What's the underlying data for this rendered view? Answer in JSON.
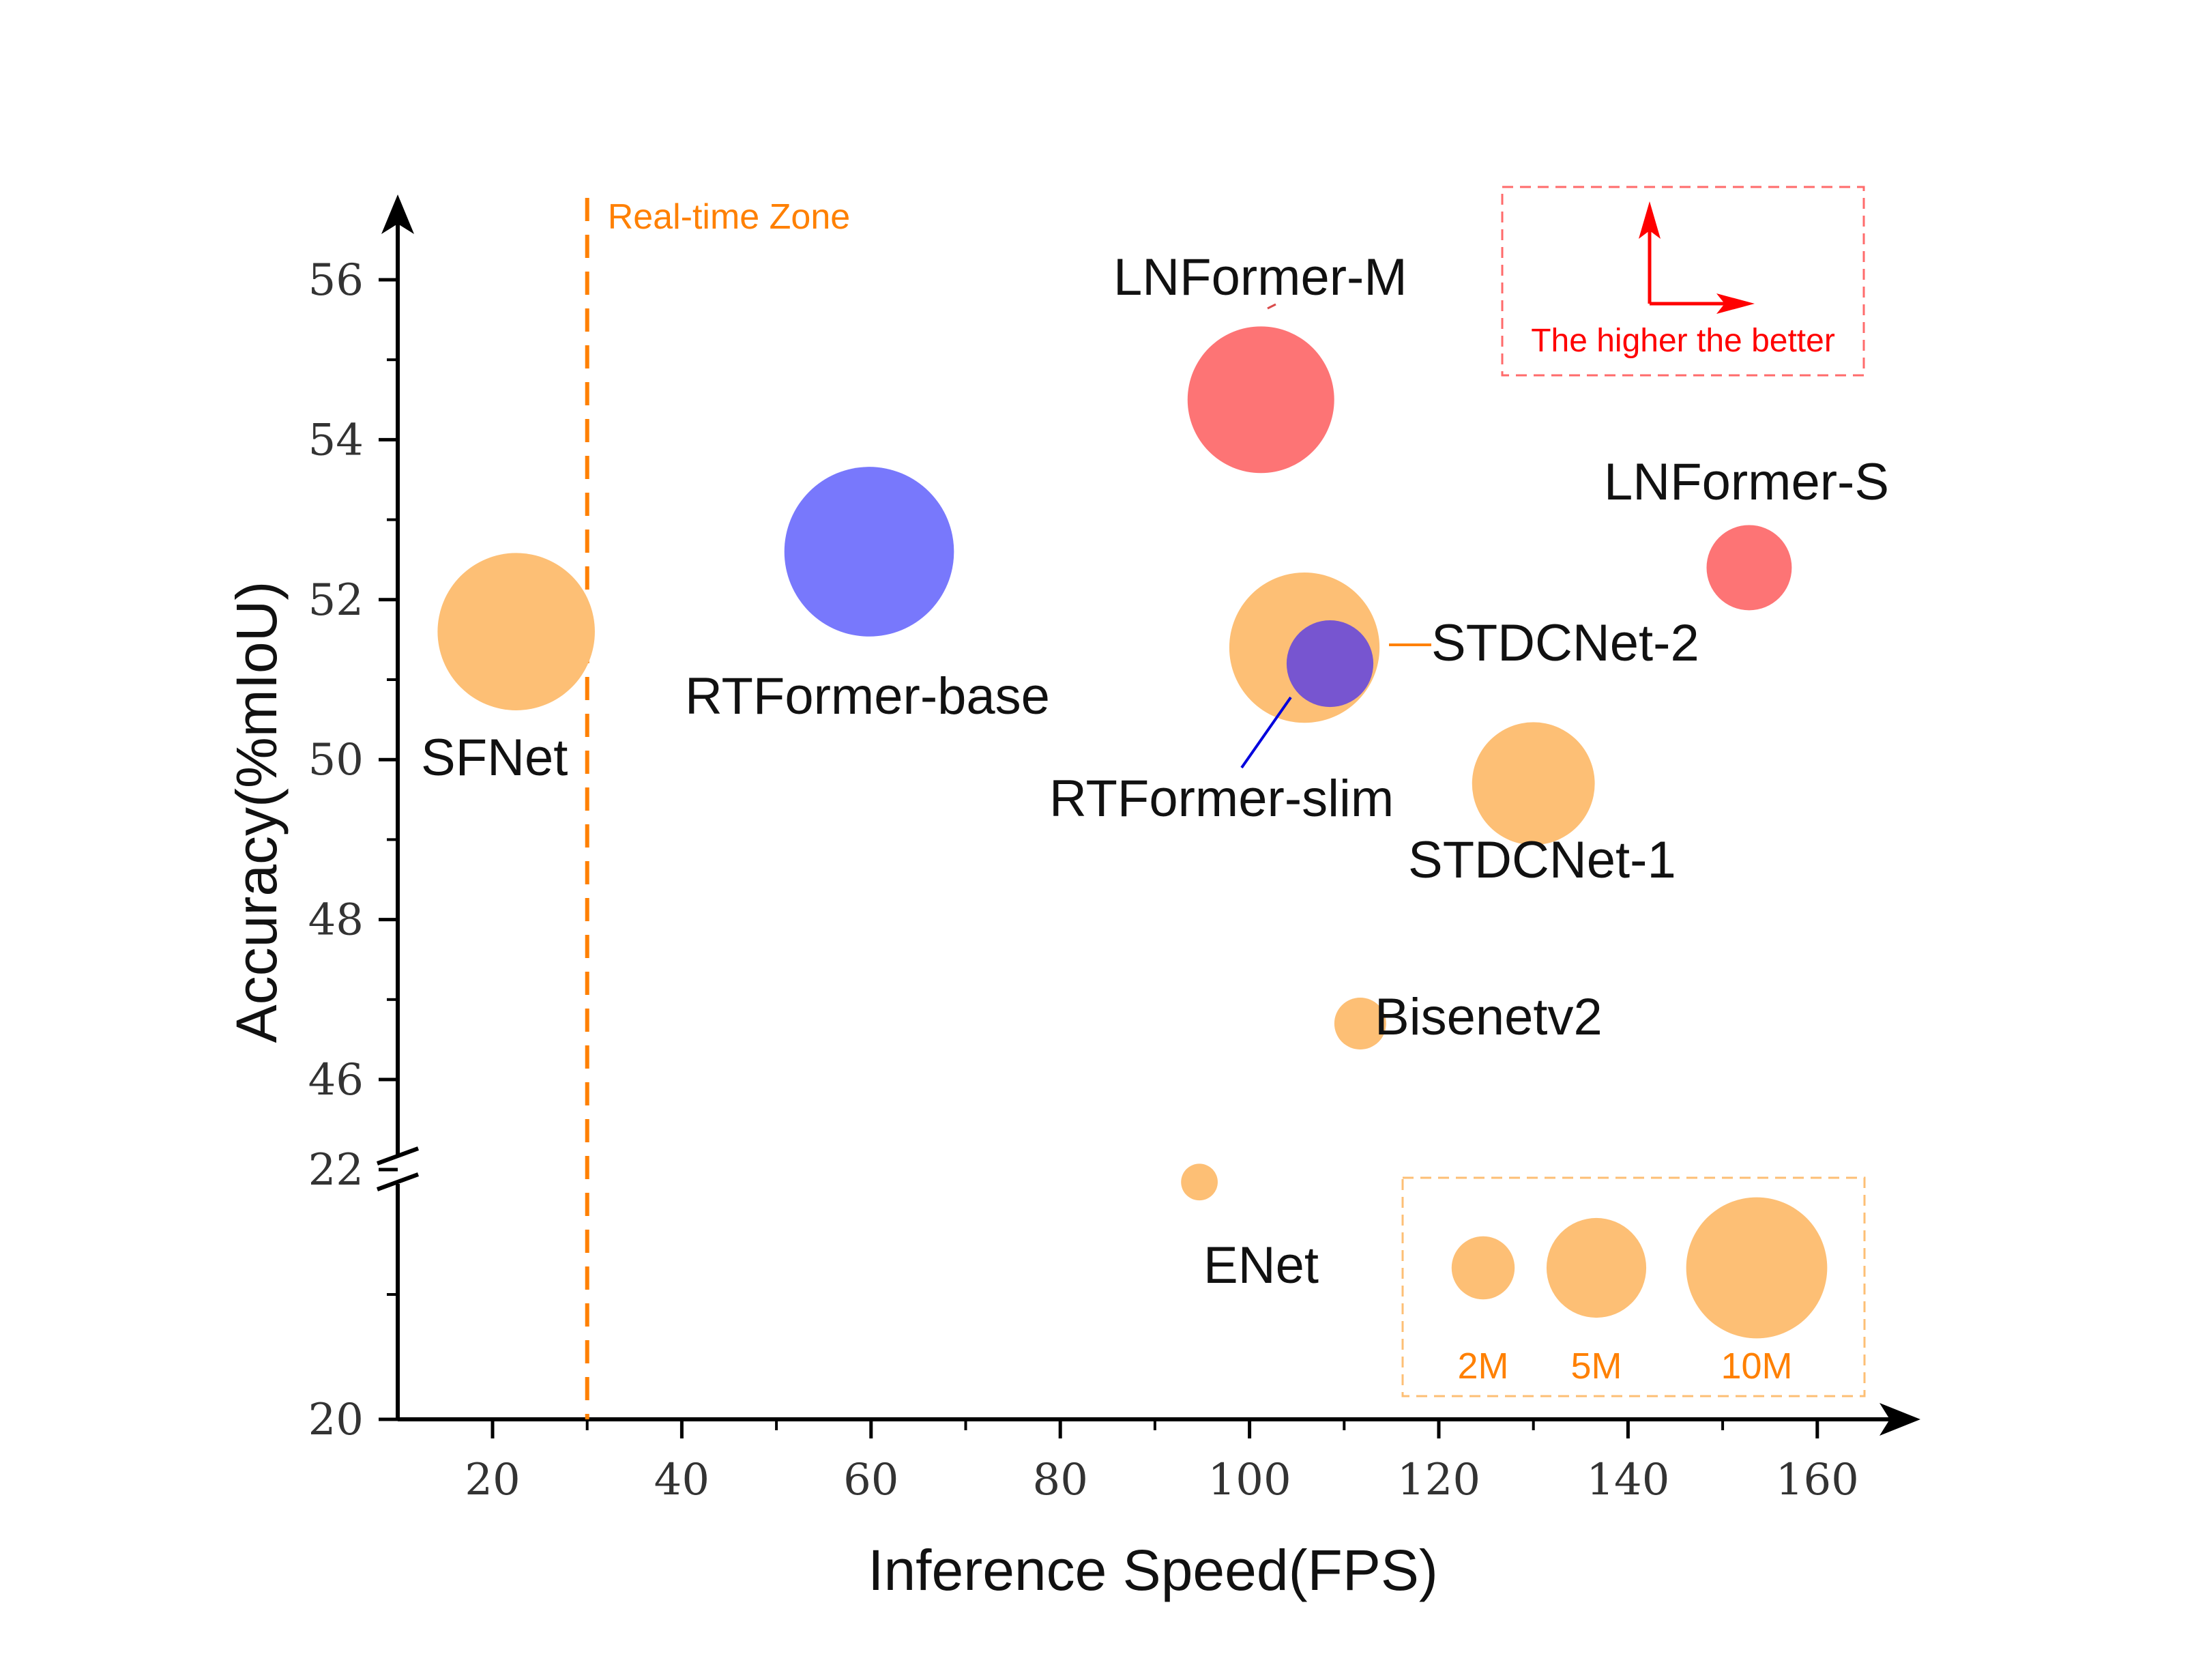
{
  "chart_data": {
    "type": "scatter",
    "xlabel": "Inference Speed(FPS)",
    "ylabel": "Accuracy(%mIoU)",
    "xlim": [
      10,
      160
    ],
    "y_upper_range": [
      45,
      57
    ],
    "y_lower_range": [
      20,
      23
    ],
    "y_axis_break": true,
    "x_ticks": [
      20,
      40,
      60,
      80,
      100,
      120,
      140,
      160
    ],
    "y_ticks_upper": [
      46,
      48,
      50,
      52,
      54,
      56
    ],
    "y_ticks_lower": [
      20,
      22
    ],
    "points": [
      {
        "label": "SFNet",
        "x": 22.5,
        "y": 51.6,
        "params_m": 9.2,
        "color": "#fdbf75"
      },
      {
        "label": "RTFormer-base",
        "x": 59.8,
        "y": 52.6,
        "params_m": 10.7,
        "color": "#7878fc"
      },
      {
        "label": "LNFormer-M",
        "x": 101.2,
        "y": 54.5,
        "params_m": 8.0,
        "color": "#fd7475"
      },
      {
        "label": "LNFormer-S",
        "x": 152.8,
        "y": 52.4,
        "params_m": 2.7,
        "color": "#fd7475"
      },
      {
        "label": "STDCNet-2",
        "x": 105.8,
        "y": 51.4,
        "params_m": 8.4,
        "color": "#fdbf75"
      },
      {
        "label": "RTFormer-slim",
        "x": 108.5,
        "y": 51.2,
        "params_m": 2.8,
        "color": "#7755d0"
      },
      {
        "label": "STDCNet-1",
        "x": 130.0,
        "y": 49.7,
        "params_m": 5.6,
        "color": "#fdbf75"
      },
      {
        "label": "Bisenetv2",
        "x": 111.7,
        "y": 46.7,
        "params_m": 1.0,
        "color": "#fdbf75"
      },
      {
        "label": "ENet",
        "x": 94.7,
        "y": 21.9,
        "params_m": 0.5,
        "color": "#fdbf75"
      }
    ],
    "size_legend": [
      {
        "label": "2M",
        "params_m": 2
      },
      {
        "label": "5M",
        "params_m": 5
      },
      {
        "label": "10M",
        "params_m": 10
      }
    ],
    "real_time_line": {
      "x": 30,
      "label": "Real-time Zone",
      "color": "#ff8000"
    },
    "note": {
      "text": "The higher the better",
      "color": "#ff0000"
    },
    "colors": {
      "orange": "#fdbf75",
      "blue": "#7878fc",
      "red": "#fd7475",
      "purple": "#7755d0",
      "legend_text": "#ff8000",
      "legend_border": "#fdbf75",
      "note_border": "#ff6b6b"
    }
  }
}
